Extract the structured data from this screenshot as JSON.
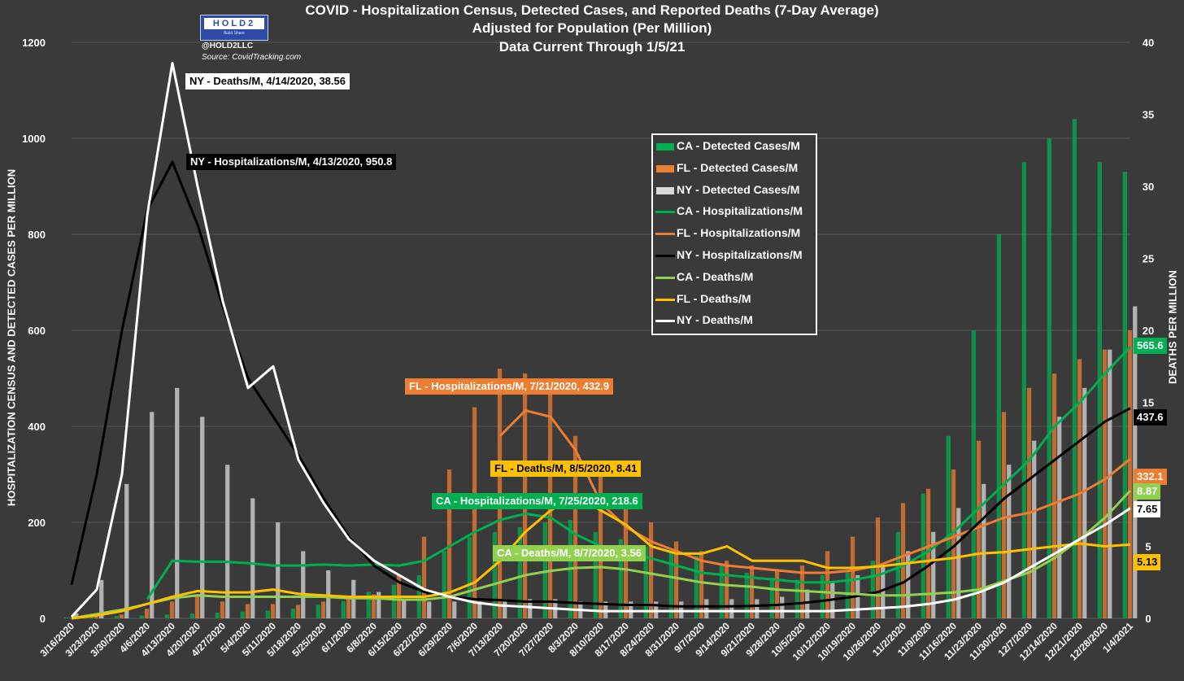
{
  "title": {
    "line1": "COVID - Hospitalization Census, Detected Cases, and Reported Deaths (7-Day Average)",
    "line2": "Adjusted for Population (Per Million)",
    "line3": "Data Current Through 1/5/21"
  },
  "branding": {
    "logo_text": "HOLD2",
    "logo_sub": "Build Share",
    "handle": "@HOLD2LLC",
    "source": "Source: CovidTracking.com"
  },
  "chart_data": {
    "type": "bar",
    "title": "COVID - Hospitalization Census, Detected Cases, and Reported Deaths (7-Day Average)",
    "subtitle": "Adjusted for Population (Per Million)",
    "ylabel": "HOSPITALIZATION CENSUS AND DETECTED CASES PER MILLION",
    "y2label": "DEATHS PER MILLION",
    "ylim": [
      0,
      1200
    ],
    "y2lim": [
      0,
      40
    ],
    "yticks": [
      "0",
      "200",
      "400",
      "600",
      "800",
      "1000",
      "1200"
    ],
    "y2ticks": [
      "0",
      "5",
      "10",
      "15",
      "20",
      "25",
      "30",
      "35",
      "40"
    ],
    "grid": true,
    "legend_position": "center-right",
    "x_tick_labels": [
      "3/16/2020",
      "3/23/2020",
      "3/30/2020",
      "4/6/2020",
      "4/13/2020",
      "4/20/2020",
      "4/27/2020",
      "5/4/2020",
      "5/11/2020",
      "5/18/2020",
      "5/25/2020",
      "6/1/2020",
      "6/8/2020",
      "6/15/2020",
      "6/22/2020",
      "6/29/2020",
      "7/6/2020",
      "7/13/2020",
      "7/20/2020",
      "7/27/2020",
      "8/3/2020",
      "8/10/2020",
      "8/17/2020",
      "8/24/2020",
      "8/31/2020",
      "9/7/2020",
      "9/14/2020",
      "9/21/2020",
      "9/28/2020",
      "10/5/2020",
      "10/12/2020",
      "10/19/2020",
      "10/26/2020",
      "11/2/2020",
      "11/9/2020",
      "11/16/2020",
      "11/23/2020",
      "11/30/2020",
      "12/7/2020",
      "12/14/2020",
      "12/21/2020",
      "12/28/2020",
      "1/4/2021"
    ],
    "series": [
      {
        "name": "CA - Detected Cases/M",
        "kind": "bar",
        "axis": "left",
        "color": "#00b050",
        "values": [
          2,
          3,
          5,
          6,
          8,
          10,
          12,
          14,
          16,
          20,
          28,
          36,
          55,
          70,
          90,
          140,
          170,
          180,
          190,
          200,
          205,
          180,
          165,
          150,
          140,
          130,
          110,
          95,
          85,
          80,
          90,
          100,
          120,
          180,
          260,
          380,
          600,
          800,
          950,
          1000,
          1040,
          950,
          930
        ]
      },
      {
        "name": "FL - Detected Cases/M",
        "kind": "bar",
        "axis": "left",
        "color": "#ed7d31",
        "values": [
          1,
          3,
          8,
          20,
          35,
          45,
          35,
          30,
          30,
          28,
          35,
          40,
          50,
          90,
          170,
          310,
          440,
          520,
          510,
          480,
          380,
          310,
          240,
          200,
          160,
          140,
          120,
          110,
          100,
          110,
          140,
          170,
          210,
          240,
          270,
          310,
          370,
          430,
          480,
          510,
          540,
          560,
          600
        ]
      },
      {
        "name": "NY - Detected Cases/M",
        "kind": "bar",
        "axis": "left",
        "color": "#d9d9d9",
        "values": [
          10,
          80,
          280,
          430,
          480,
          420,
          320,
          250,
          200,
          140,
          100,
          80,
          55,
          40,
          35,
          35,
          35,
          40,
          40,
          40,
          35,
          35,
          35,
          35,
          35,
          40,
          40,
          40,
          45,
          60,
          75,
          90,
          110,
          140,
          180,
          230,
          280,
          320,
          370,
          420,
          480,
          560,
          650
        ]
      },
      {
        "name": "CA - Hospitalizations/M",
        "kind": "line",
        "axis": "left",
        "color": "#00b050",
        "values": [
          null,
          null,
          null,
          40,
          120,
          118,
          118,
          115,
          110,
          110,
          112,
          110,
          112,
          110,
          120,
          150,
          180,
          205,
          218,
          210,
          175,
          150,
          140,
          125,
          110,
          95,
          90,
          85,
          80,
          75,
          75,
          80,
          90,
          110,
          140,
          180,
          230,
          280,
          330,
          400,
          450,
          510,
          565.6
        ]
      },
      {
        "name": "FL - Hospitalizations/M",
        "kind": "line",
        "axis": "left",
        "color": "#ed7d31",
        "values": [
          null,
          null,
          null,
          null,
          null,
          null,
          null,
          null,
          null,
          null,
          null,
          null,
          null,
          null,
          null,
          null,
          null,
          380,
          432.9,
          420,
          350,
          240,
          190,
          160,
          140,
          120,
          110,
          105,
          100,
          95,
          95,
          100,
          110,
          130,
          150,
          170,
          190,
          210,
          220,
          240,
          260,
          290,
          332.1
        ]
      },
      {
        "name": "NY - Hospitalizations/M",
        "kind": "line",
        "axis": "left",
        "color": "#000000",
        "values": [
          70,
          300,
          600,
          850,
          950.8,
          820,
          650,
          500,
          420,
          340,
          250,
          170,
          110,
          75,
          55,
          45,
          40,
          38,
          35,
          35,
          32,
          30,
          28,
          28,
          25,
          25,
          25,
          26,
          28,
          32,
          38,
          45,
          55,
          75,
          110,
          150,
          200,
          250,
          290,
          330,
          370,
          410,
          437.6
        ]
      },
      {
        "name": "CA - Deaths/M",
        "kind": "line",
        "axis": "right",
        "color": "#92d050",
        "values": [
          0,
          0.3,
          0.6,
          1.0,
          1.4,
          1.6,
          1.5,
          1.5,
          1.5,
          1.5,
          1.5,
          1.4,
          1.4,
          1.3,
          1.3,
          1.5,
          2.0,
          2.5,
          3.0,
          3.3,
          3.5,
          3.56,
          3.4,
          3.1,
          2.8,
          2.5,
          2.3,
          2.2,
          2.0,
          1.9,
          1.8,
          1.7,
          1.6,
          1.6,
          1.7,
          1.8,
          2.0,
          2.6,
          3.2,
          4.2,
          5.5,
          7.0,
          8.87
        ]
      },
      {
        "name": "FL - Deaths/M",
        "kind": "line",
        "axis": "right",
        "color": "#ffc000",
        "values": [
          0,
          0.2,
          0.5,
          1.0,
          1.5,
          1.9,
          1.8,
          1.8,
          2.0,
          1.7,
          1.6,
          1.5,
          1.5,
          1.5,
          1.5,
          1.8,
          2.5,
          4.0,
          6.0,
          7.5,
          8.41,
          7.5,
          6.5,
          5.0,
          4.5,
          4.5,
          5.0,
          4.0,
          4.0,
          4.0,
          3.5,
          3.5,
          3.6,
          3.8,
          4.0,
          4.2,
          4.5,
          4.6,
          4.8,
          5.0,
          5.2,
          5.0,
          5.13
        ]
      },
      {
        "name": "NY - Deaths/M",
        "kind": "line",
        "axis": "right",
        "color": "#ffffff",
        "values": [
          0.1,
          2.0,
          10.0,
          28.0,
          38.56,
          30.0,
          22.0,
          16.0,
          17.5,
          11.0,
          8.0,
          5.5,
          4.0,
          3.0,
          2.0,
          1.5,
          1.1,
          0.9,
          0.8,
          0.7,
          0.6,
          0.5,
          0.5,
          0.5,
          0.5,
          0.5,
          0.5,
          0.5,
          0.5,
          0.5,
          0.5,
          0.6,
          0.7,
          0.8,
          1.0,
          1.3,
          1.8,
          2.5,
          3.5,
          4.5,
          5.5,
          6.5,
          7.65
        ]
      }
    ],
    "annotations": [
      {
        "text": "NY - Deaths/M, 4/14/2020, 38.56",
        "series": "NY - Deaths/M",
        "bg": "#ffffff",
        "fg": "#000000"
      },
      {
        "text": "NY - Hospitalizations/M, 4/13/2020, 950.8",
        "series": "NY - Hospitalizations/M",
        "bg": "#000000",
        "fg": "#ffffff"
      },
      {
        "text": "FL - Hospitalizations/M, 7/21/2020, 432.9",
        "series": "FL - Hospitalizations/M",
        "bg": "#ed7d31",
        "fg": "#ffffff"
      },
      {
        "text": "FL - Deaths/M, 8/5/2020, 8.41",
        "series": "FL - Deaths/M",
        "bg": "#ffc000",
        "fg": "#000000"
      },
      {
        "text": "CA - Hospitalizations/M, 7/25/2020, 218.6",
        "series": "CA - Hospitalizations/M",
        "bg": "#00b050",
        "fg": "#ffffff"
      },
      {
        "text": "CA - Deaths/M, 8/7/2020, 3.56",
        "series": "CA - Deaths/M",
        "bg": "#92d050",
        "fg": "#ffffff"
      }
    ],
    "end_labels": [
      {
        "text": "565.6",
        "bg": "#00b050",
        "fg": "#ffffff"
      },
      {
        "text": "437.6",
        "bg": "#000000",
        "fg": "#ffffff"
      },
      {
        "text": "332.1",
        "bg": "#ed7d31",
        "fg": "#ffffff"
      },
      {
        "text": "8.87",
        "bg": "#92d050",
        "fg": "#ffffff"
      },
      {
        "text": "7.65",
        "bg": "#ffffff",
        "fg": "#000000"
      },
      {
        "text": "5.13",
        "bg": "#ffc000",
        "fg": "#000000"
      }
    ]
  }
}
